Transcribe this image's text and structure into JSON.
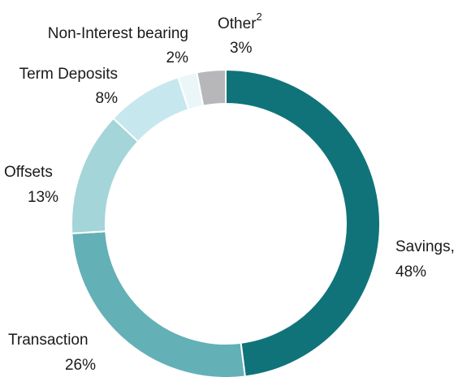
{
  "chart_data": {
    "type": "donut",
    "categories": [
      "Savings,",
      "Transaction",
      "Offsets",
      "Term Deposits",
      "Non-Interest bearing",
      "Other"
    ],
    "values": [
      48,
      26,
      13,
      8,
      2,
      3
    ],
    "value_labels": [
      "48%",
      "26%",
      "13%",
      "8%",
      "2%",
      "3%"
    ],
    "colors": [
      "#10737a",
      "#63b0b6",
      "#a3d5d9",
      "#c7e7ee",
      "#eaf6f8",
      "#b7b7b9"
    ],
    "footnotes": {
      "5": "2"
    }
  }
}
